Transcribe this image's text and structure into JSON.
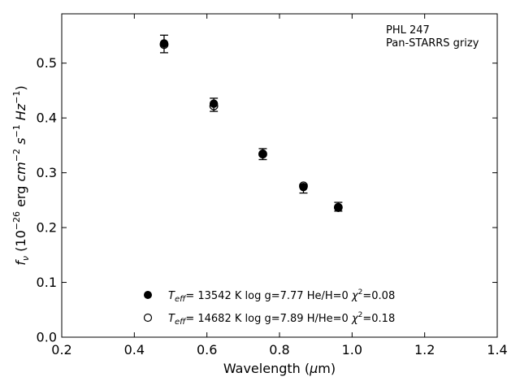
{
  "chart_data": {
    "type": "scatter",
    "title": "",
    "xlabel": "Wavelength (μm)",
    "ylabel": "f_ν (10^-26 erg cm^-2 s^-1 Hz^-1)",
    "xlim": [
      0.2,
      1.4
    ],
    "ylim": [
      0.0,
      0.59
    ],
    "xticks": [
      0.2,
      0.4,
      0.6,
      0.8,
      1.0,
      1.2,
      1.4
    ],
    "xtick_labels": [
      "0.2",
      "0.4",
      "0.6",
      "0.8",
      "1.0",
      "1.2",
      "1.4"
    ],
    "yticks": [
      0.0,
      0.1,
      0.2,
      0.3,
      0.4,
      0.5
    ],
    "ytick_labels": [
      "0.0",
      "0.1",
      "0.2",
      "0.3",
      "0.4",
      "0.5"
    ],
    "grid": false,
    "annotation": [
      "PHL 247",
      "Pan-STARRS grizy"
    ],
    "legend_position": "lower-center",
    "observed": {
      "x": [
        0.482,
        0.619,
        0.754,
        0.866,
        0.962
      ],
      "y": [
        0.535,
        0.424,
        0.334,
        0.271,
        0.238
      ],
      "yerr": [
        0.016,
        0.012,
        0.01,
        0.008,
        0.008
      ]
    },
    "series": [
      {
        "name": "T_eff= 13542 K  log g=7.77  He/H=0  χ²=0.08",
        "marker": "filled",
        "legend_parts": {
          "teff": "13542",
          "logg": "7.77",
          "comp": "He/H=0",
          "chi2": "0.08"
        },
        "x": [
          0.482,
          0.619,
          0.754,
          0.866,
          0.962
        ],
        "y": [
          0.536,
          0.426,
          0.335,
          0.274,
          0.236
        ]
      },
      {
        "name": "T_eff= 14682 K  log g=7.89  H/He=0  χ²=0.18",
        "marker": "open",
        "legend_parts": {
          "teff": "14682",
          "logg": "7.89",
          "comp": "H/He=0",
          "chi2": "0.18"
        },
        "x": [
          0.482,
          0.619,
          0.754,
          0.866,
          0.962
        ],
        "y": [
          0.534,
          0.422,
          0.334,
          0.276,
          0.237
        ]
      }
    ]
  }
}
